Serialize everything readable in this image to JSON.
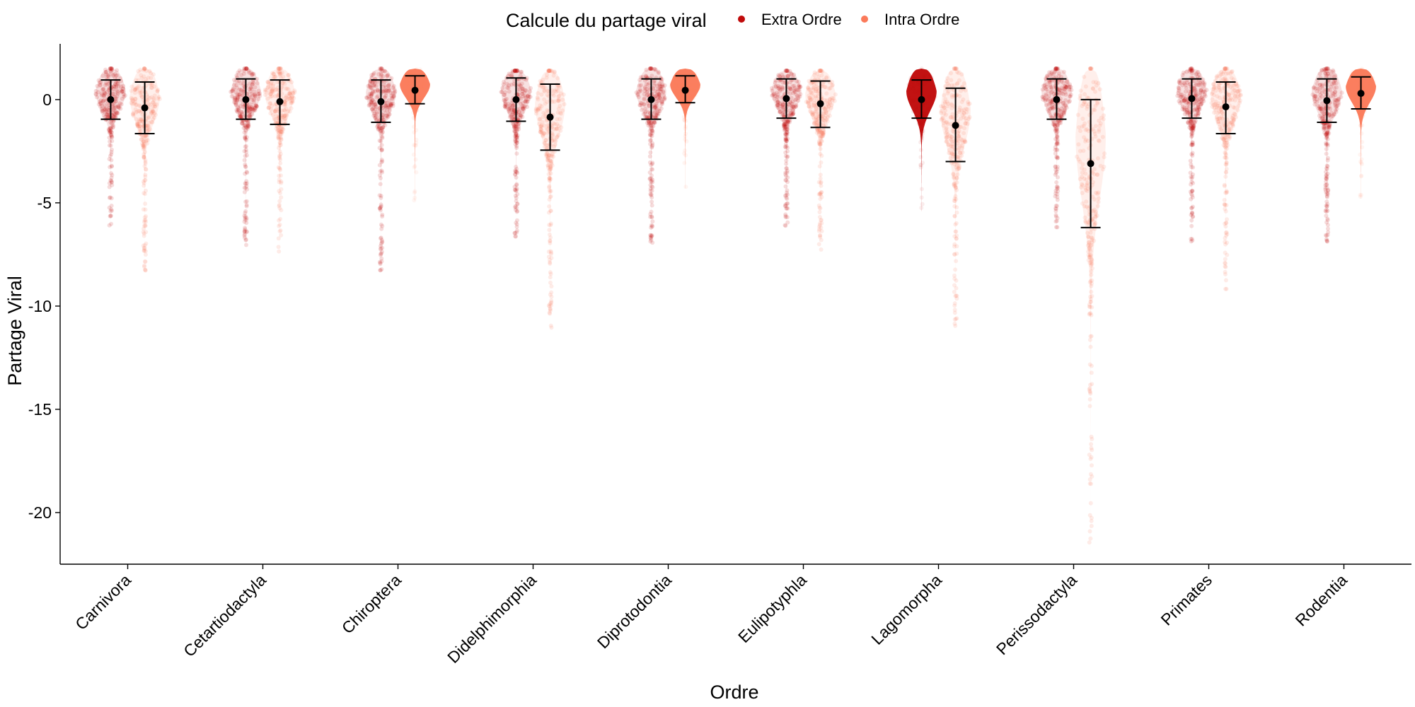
{
  "chart_data": {
    "type": "violin",
    "xlabel": "Ordre",
    "ylabel": "Partage Viral",
    "legend": {
      "title": "Calcule du partage viral",
      "position": "top",
      "entries": [
        {
          "name": "Extra Ordre",
          "color": "#c00a0a"
        },
        {
          "name": "Intra Ordre",
          "color": "#fb7a5a"
        }
      ]
    },
    "ylim": [
      -22.5,
      2.7
    ],
    "yticks": [
      0,
      -5,
      -10,
      -15,
      -20
    ],
    "ytick_labels": [
      "0",
      "-5",
      "-10",
      "-15",
      "-20"
    ],
    "grid": false,
    "categories": [
      "Carnivora",
      "Cetartiodactyla",
      "Chiroptera",
      "Didelphimorphia",
      "Diprotodontia",
      "Eulipotyphla",
      "Lagomorpha",
      "Perissodactyla",
      "Primates",
      "Rodentia"
    ],
    "series": [
      {
        "name": "Extra Ordre",
        "color": "#c00a0a",
        "mean": [
          0.0,
          0.0,
          -0.1,
          0.0,
          0.0,
          0.05,
          0.0,
          0.0,
          0.05,
          -0.05
        ],
        "lower": [
          -0.95,
          -0.95,
          -1.1,
          -1.05,
          -0.95,
          -0.9,
          -0.9,
          -0.95,
          -0.9,
          -1.1
        ],
        "upper": [
          0.95,
          1.0,
          0.95,
          1.05,
          1.0,
          1.0,
          0.95,
          1.0,
          1.0,
          1.0
        ],
        "min": [
          -6.2,
          -7.1,
          -8.3,
          -6.8,
          -7.0,
          -6.2,
          -5.4,
          -6.2,
          -7.0,
          -6.9
        ],
        "max": [
          1.5,
          1.5,
          1.5,
          1.4,
          1.5,
          1.4,
          1.5,
          1.5,
          1.5,
          1.5
        ]
      },
      {
        "name": "Intra Ordre",
        "color": "#fb7a5a",
        "mean": [
          -0.4,
          -0.1,
          0.45,
          -0.85,
          0.45,
          -0.2,
          -1.25,
          -3.1,
          -0.35,
          0.3
        ],
        "lower": [
          -1.65,
          -1.2,
          -0.2,
          -2.45,
          -0.15,
          -1.35,
          -3.0,
          -6.2,
          -1.65,
          -0.45
        ],
        "upper": [
          0.85,
          0.95,
          1.15,
          0.75,
          1.15,
          0.9,
          0.55,
          0.0,
          0.85,
          1.1
        ],
        "min": [
          -8.3,
          -7.8,
          -4.9,
          -11.3,
          -4.3,
          -7.4,
          -11.0,
          -21.8,
          -9.2,
          -4.8
        ],
        "max": [
          1.5,
          1.5,
          1.5,
          1.4,
          1.5,
          1.4,
          1.5,
          1.5,
          1.5,
          1.5
        ]
      }
    ]
  }
}
